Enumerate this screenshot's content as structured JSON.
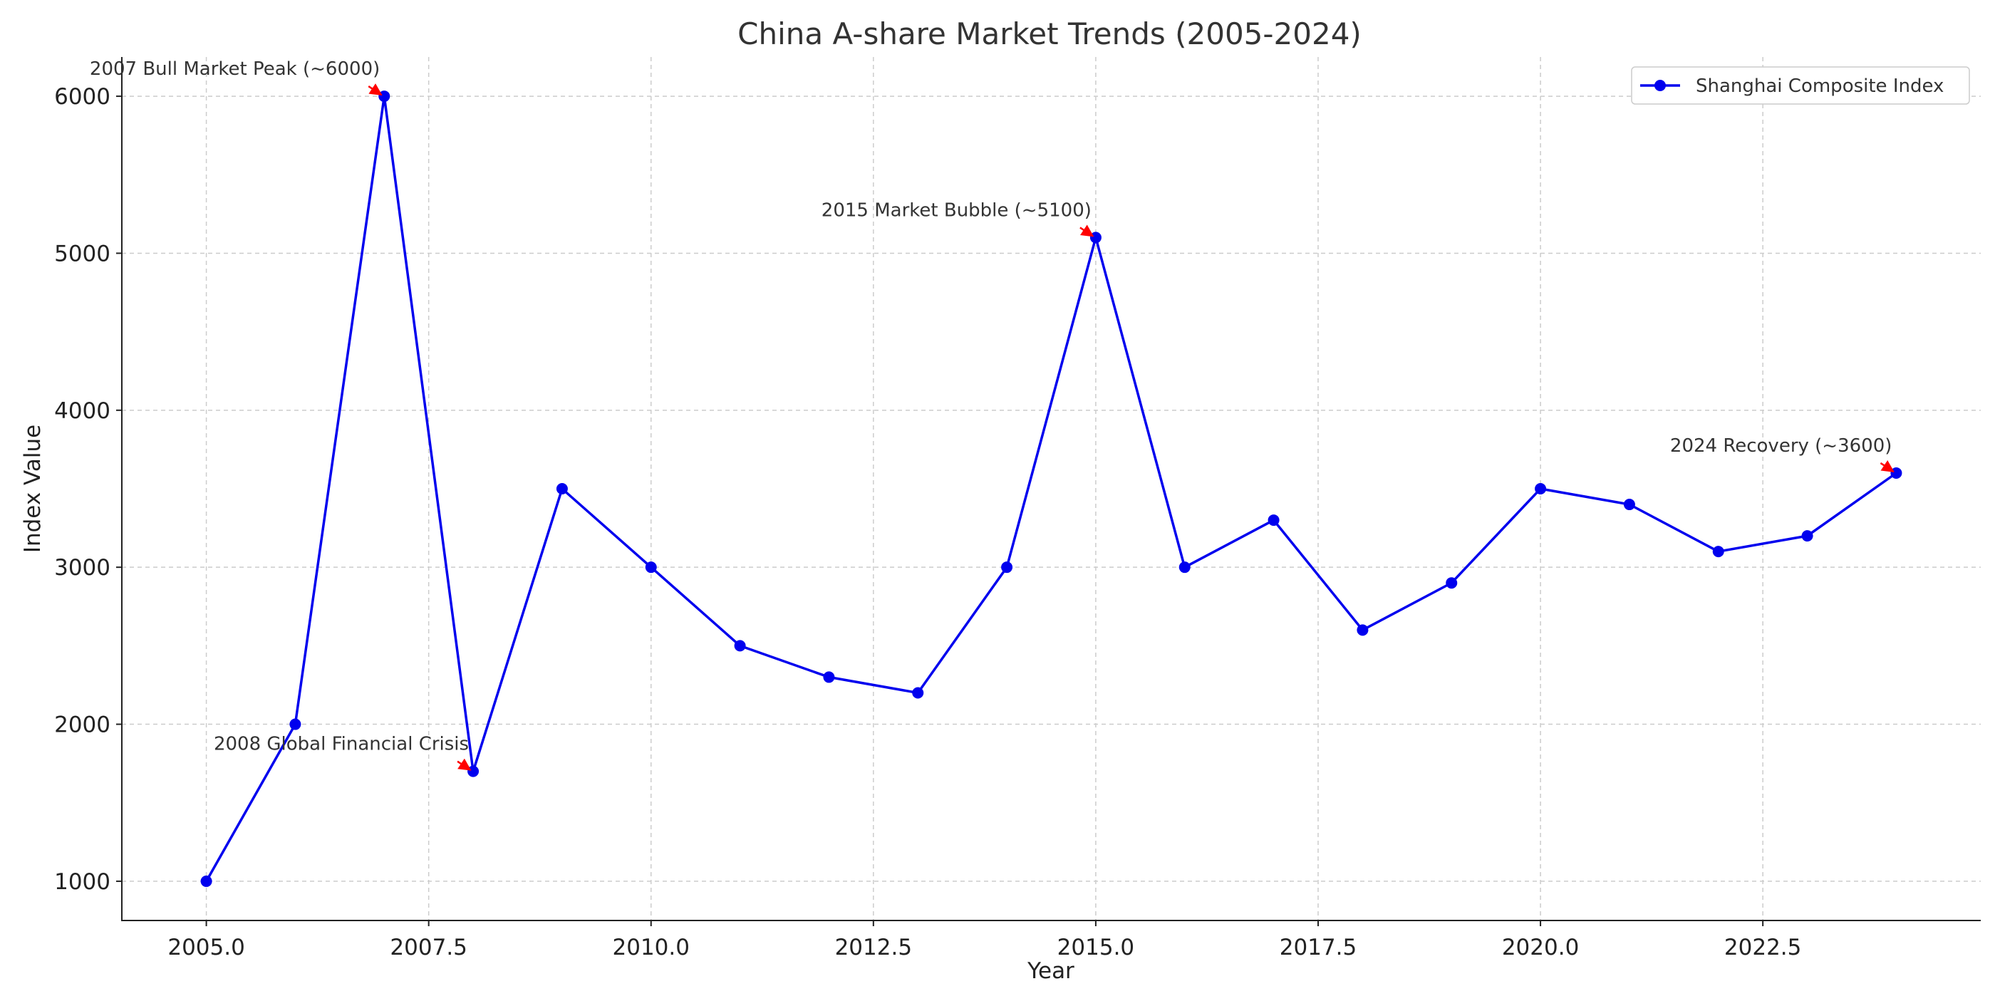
{
  "chart_data": {
    "type": "line",
    "title": "China A-share Market Trends (2005-2024)",
    "xlabel": "Year",
    "ylabel": "Index Value",
    "xlim": [
      2004.05,
      2024.95
    ],
    "ylim": [
      750,
      6250
    ],
    "xticks": [
      2005.0,
      2007.5,
      2010.0,
      2012.5,
      2015.0,
      2017.5,
      2020.0,
      2022.5
    ],
    "xtick_labels": [
      "2005.0",
      "2007.5",
      "2010.0",
      "2012.5",
      "2015.0",
      "2017.5",
      "2020.0",
      "2022.5"
    ],
    "yticks": [
      1000,
      2000,
      3000,
      4000,
      5000,
      6000
    ],
    "ytick_labels": [
      "1000",
      "2000",
      "3000",
      "4000",
      "5000",
      "6000"
    ],
    "grid": true,
    "legend_position": "top-right",
    "x": [
      2005,
      2006,
      2007,
      2008,
      2009,
      2010,
      2011,
      2012,
      2013,
      2014,
      2015,
      2016,
      2017,
      2018,
      2019,
      2020,
      2021,
      2022,
      2023,
      2024
    ],
    "series": [
      {
        "name": "Shanghai Composite Index",
        "color": "#0000ee",
        "marker": "circle",
        "values": [
          1000,
          2000,
          6000,
          1700,
          3500,
          3000,
          2500,
          2300,
          2200,
          3000,
          5100,
          3000,
          3300,
          2600,
          2900,
          3500,
          3400,
          3100,
          3200,
          3600
        ]
      }
    ],
    "annotations": [
      {
        "text": "2007 Bull Market Peak (~6000)",
        "x": 2007,
        "y": 6000,
        "anchor": "above-left"
      },
      {
        "text": "2008 Global Financial Crisis",
        "x": 2008,
        "y": 1700,
        "anchor": "above-left"
      },
      {
        "text": "2015 Market Bubble (~5100)",
        "x": 2015,
        "y": 5100,
        "anchor": "above-left"
      },
      {
        "text": "2024 Recovery (~3600)",
        "x": 2024,
        "y": 3600,
        "anchor": "above-left"
      }
    ],
    "annotation_arrow_color": "#ff0000"
  }
}
